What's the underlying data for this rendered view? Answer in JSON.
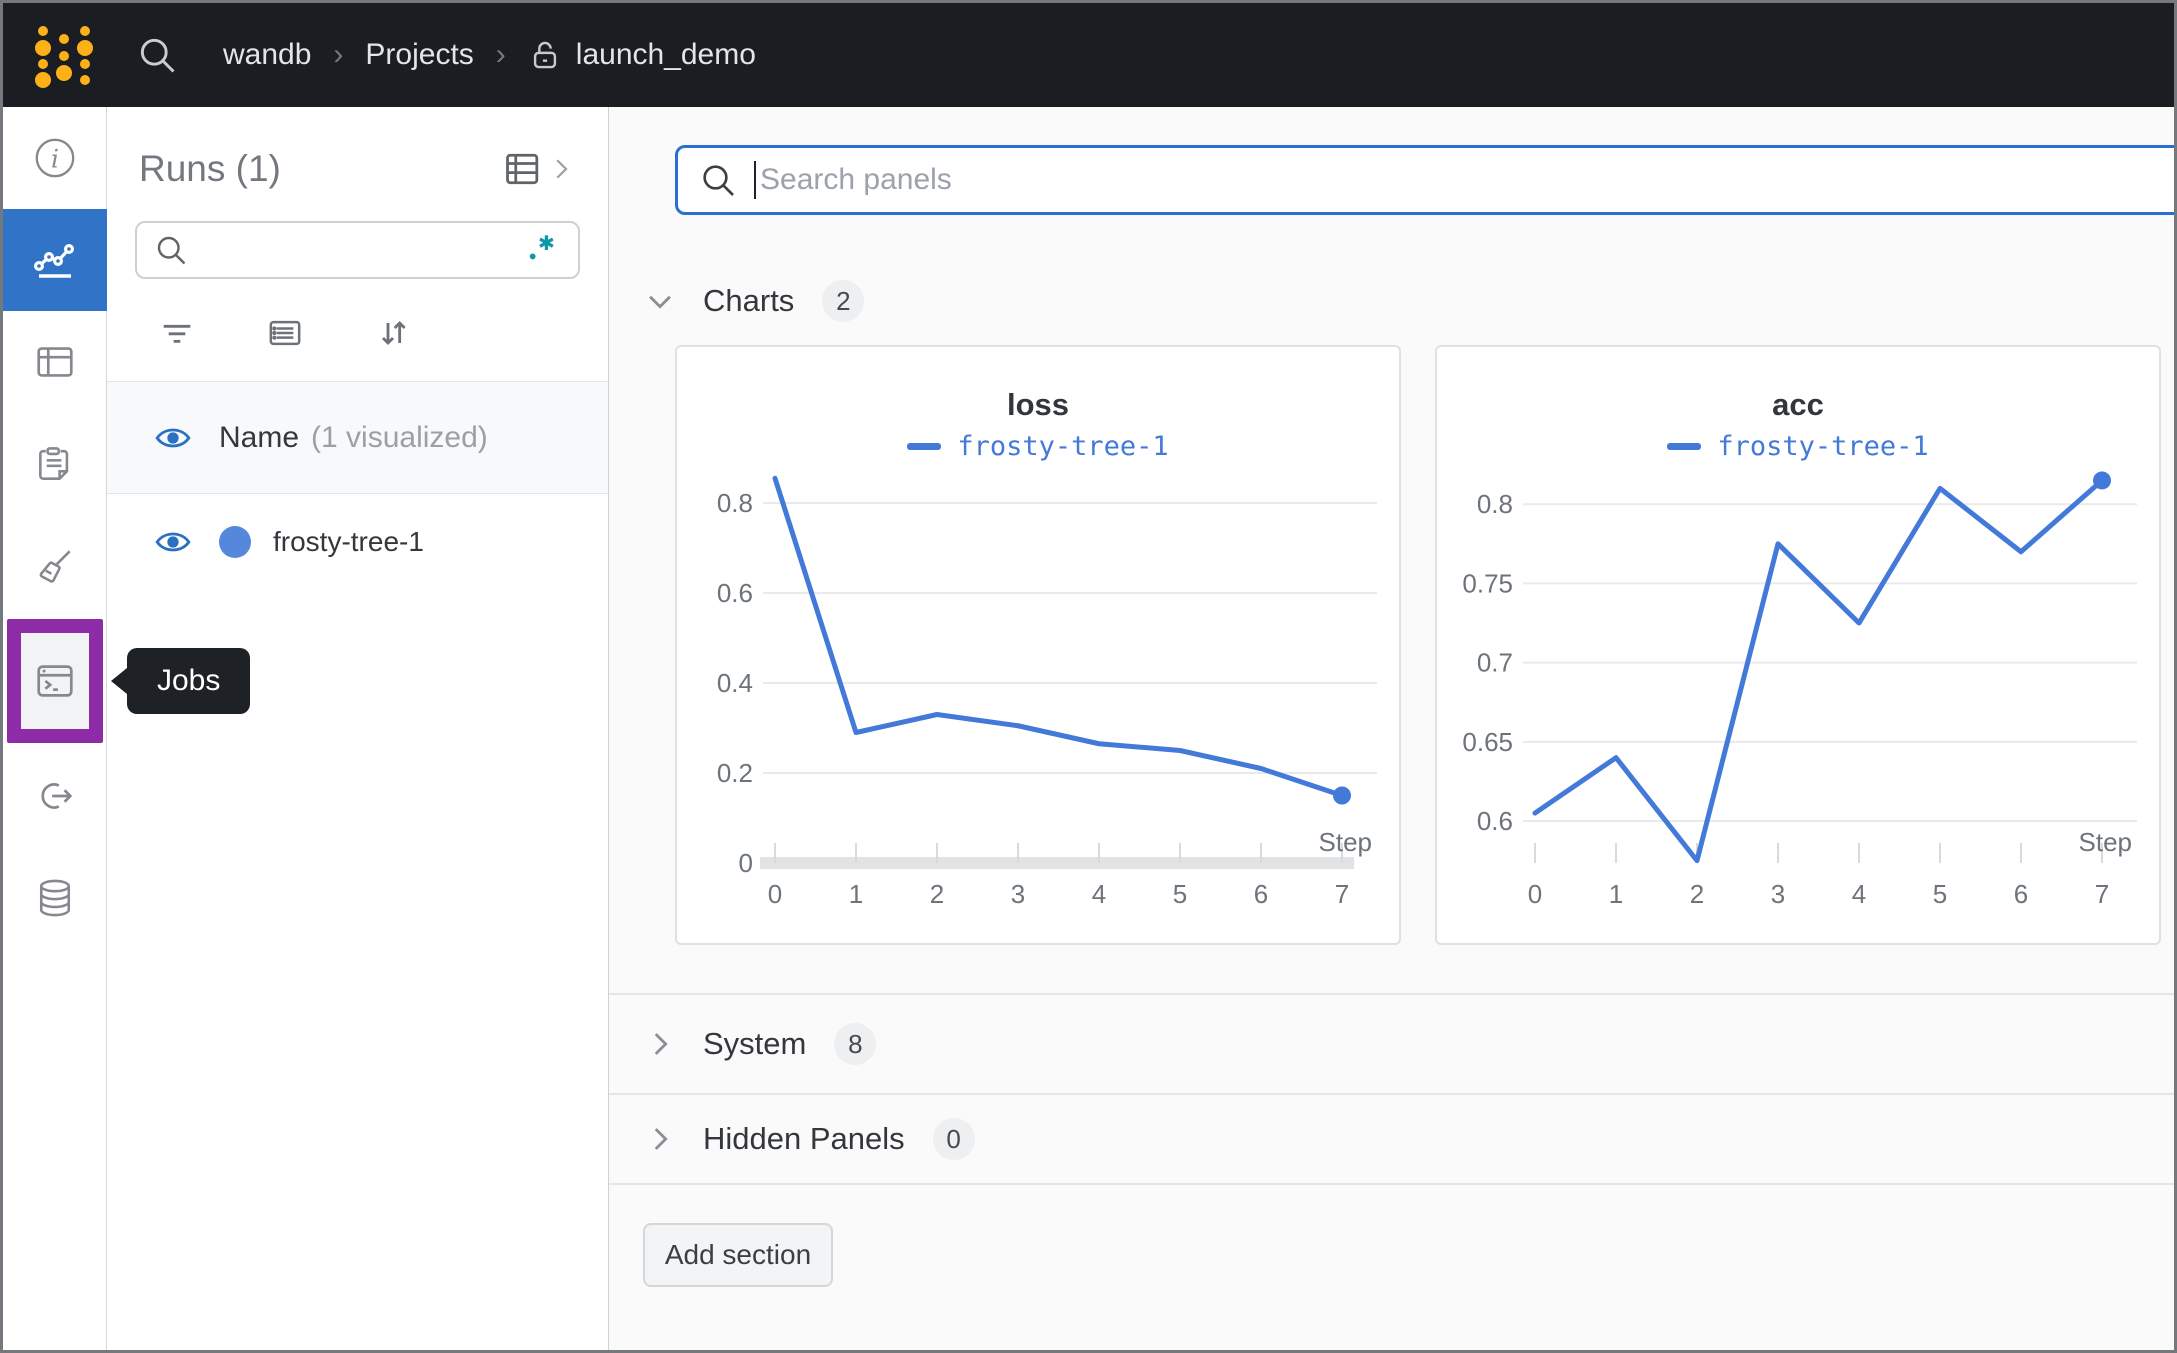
{
  "navbar": {
    "breadcrumb": {
      "item1": "wandb",
      "item2": "Projects",
      "item3": "launch_demo",
      "separator": "›"
    }
  },
  "sidebar": {
    "items": [
      {
        "name": "info"
      },
      {
        "name": "workspace-charts",
        "active": true
      },
      {
        "name": "runs-table"
      },
      {
        "name": "reports"
      },
      {
        "name": "sweeps"
      },
      {
        "name": "jobs",
        "highlighted": true
      },
      {
        "name": "automations"
      },
      {
        "name": "artifacts"
      }
    ],
    "tooltip": "Jobs"
  },
  "runs_panel": {
    "title": "Runs (1)",
    "search_value": "",
    "name_header": "Name",
    "visualized_note": "(1 visualized)",
    "run": {
      "name": "frosty-tree-1",
      "color": "#5588dd"
    }
  },
  "main": {
    "search": {
      "placeholder": "Search panels"
    },
    "sections": [
      {
        "label": "Charts",
        "count": "2"
      },
      {
        "label": "System",
        "count": "8"
      },
      {
        "label": "Hidden Panels",
        "count": "0"
      }
    ],
    "add_section_label": "Add section"
  },
  "chart_data": [
    {
      "type": "line",
      "title": "loss",
      "xlabel": "Step",
      "series": [
        {
          "name": "frosty-tree-1",
          "x": [
            0,
            1,
            2,
            3,
            4,
            5,
            6,
            7
          ],
          "values": [
            0.855,
            0.29,
            0.33,
            0.305,
            0.265,
            0.25,
            0.21,
            0.15
          ]
        }
      ],
      "xticks": [
        0,
        1,
        2,
        3,
        4,
        5,
        6,
        7
      ],
      "yticks": [
        0,
        0.2,
        0.4,
        0.6,
        0.8
      ],
      "ylim": [
        0,
        0.88
      ],
      "grid": true,
      "legend_position": "top",
      "show_zero_axis": true,
      "end_dot": true,
      "line_color": "#4379d8"
    },
    {
      "type": "line",
      "title": "acc",
      "xlabel": "Step",
      "series": [
        {
          "name": "frosty-tree-1",
          "x": [
            0,
            1,
            2,
            3,
            4,
            5,
            6,
            7
          ],
          "values": [
            0.605,
            0.64,
            0.575,
            0.775,
            0.725,
            0.81,
            0.77,
            0.815
          ]
        }
      ],
      "xticks": [
        0,
        1,
        2,
        3,
        4,
        5,
        6,
        7
      ],
      "yticks": [
        0.6,
        0.65,
        0.7,
        0.75,
        0.8
      ],
      "ylim": [
        0.5735,
        0.8235
      ],
      "grid": true,
      "legend_position": "top",
      "show_zero_axis": false,
      "end_dot": true,
      "line_color": "#4379d8"
    }
  ],
  "colors": {
    "brand_gold": "#fcb119",
    "active_nav_blue": "#3173c7",
    "jobs_highlight_purple": "#8e2ba6",
    "run_color": "#5588dd",
    "line_blue": "#4379d8",
    "regex_teal": "#1097a5",
    "focus_border_blue": "#2a6fd2"
  }
}
